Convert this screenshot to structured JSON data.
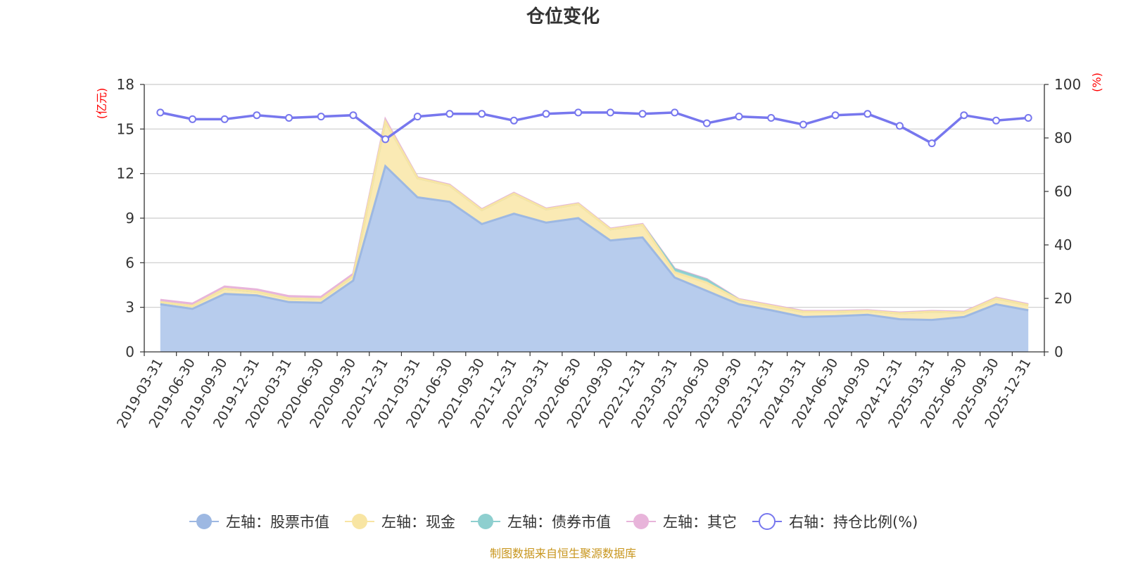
{
  "chart_data": {
    "type": "area",
    "title": "仓位变化",
    "left_axis_unit": "(亿元)",
    "right_axis_unit": "(%)",
    "left_ylim": [
      0,
      18
    ],
    "left_ticks": [
      0,
      3,
      6,
      9,
      12,
      15,
      18
    ],
    "right_ylim": [
      0,
      100
    ],
    "right_ticks": [
      0,
      20,
      40,
      60,
      80,
      100
    ],
    "categories": [
      "2019-03-31",
      "2019-06-30",
      "2019-09-30",
      "2019-12-31",
      "2020-03-31",
      "2020-06-30",
      "2020-09-30",
      "2020-12-31",
      "2021-03-31",
      "2021-06-30",
      "2021-09-30",
      "2021-12-31",
      "2022-03-31",
      "2022-06-30",
      "2022-09-30",
      "2022-12-31",
      "2023-03-31",
      "2023-06-30",
      "2023-09-30",
      "2023-12-31",
      "2024-03-31",
      "2024-06-30",
      "2024-09-30",
      "2024-12-31",
      "2025-03-31",
      "2025-06-30",
      "2025-09-30",
      "2025-12-31"
    ],
    "series": [
      {
        "name": "左轴：股票市值",
        "axis": "left",
        "color": "#9db8e2",
        "fill": "#b7cced",
        "values": [
          3.2,
          2.9,
          3.9,
          3.8,
          3.35,
          3.3,
          4.8,
          12.5,
          10.4,
          10.1,
          8.6,
          9.3,
          8.7,
          9.0,
          7.5,
          7.7,
          5.0,
          4.1,
          3.2,
          2.8,
          2.35,
          2.4,
          2.5,
          2.2,
          2.15,
          2.35,
          3.2,
          2.8
        ]
      },
      {
        "name": "左轴：现金",
        "axis": "left",
        "color": "#f8e5a3",
        "fill": "#faeab4",
        "values": [
          0.15,
          0.2,
          0.35,
          0.25,
          0.25,
          0.25,
          0.3,
          3.0,
          1.3,
          1.1,
          0.95,
          1.35,
          0.9,
          0.95,
          0.75,
          0.85,
          0.35,
          0.55,
          0.3,
          0.3,
          0.35,
          0.3,
          0.25,
          0.4,
          0.55,
          0.3,
          0.4,
          0.35
        ]
      },
      {
        "name": "左轴：债券市值",
        "axis": "left",
        "color": "#8ecfcf",
        "fill": "#a6d9d9",
        "values": [
          0,
          0,
          0,
          0,
          0,
          0,
          0,
          0,
          0,
          0,
          0,
          0,
          0,
          0,
          0,
          0,
          0.2,
          0.2,
          0,
          0,
          0,
          0,
          0,
          0,
          0,
          0,
          0,
          0
        ]
      },
      {
        "name": "左轴：其它",
        "axis": "left",
        "color": "#e8b4da",
        "fill": "#f0c9e6",
        "values": [
          0.15,
          0.15,
          0.15,
          0.15,
          0.15,
          0.15,
          0.15,
          0.15,
          0.05,
          0.05,
          0.05,
          0.05,
          0.05,
          0.05,
          0.05,
          0.05,
          0.05,
          0.05,
          0.05,
          0.05,
          0.05,
          0.05,
          0.05,
          0.05,
          0.05,
          0.05,
          0.05,
          0.05
        ]
      },
      {
        "name": "右轴：持仓比例(%)",
        "axis": "right",
        "color": "#7777ee",
        "values": [
          89.5,
          87.0,
          87.0,
          88.5,
          87.5,
          88.0,
          88.5,
          79.5,
          88.0,
          89.0,
          89.0,
          86.5,
          89.0,
          89.5,
          89.5,
          89.0,
          89.5,
          85.5,
          88.0,
          87.5,
          85.0,
          88.5,
          89.0,
          84.5,
          78.0,
          88.5,
          86.5,
          87.5
        ]
      }
    ],
    "legend_position": "bottom-center",
    "grid": true
  },
  "footer": {
    "source": "制图数据来自恒生聚源数据库"
  }
}
